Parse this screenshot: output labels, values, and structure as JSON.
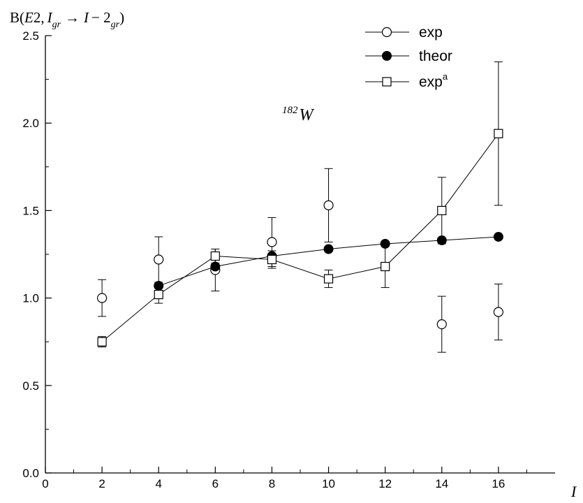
{
  "chart_data": {
    "type": "scatter",
    "title": "",
    "xlabel": "I",
    "ylabel": "B(E2, I_gr → I − 2_gr)",
    "ylabel_parts": {
      "pre": "B(",
      "E2": "E",
      "two": "2,",
      "I1": "I",
      "gr1": "gr",
      "arrow": "→",
      "I2": "I",
      "minus": "− 2",
      "gr2": "gr",
      "close": ")"
    },
    "annotation": {
      "mass": "182",
      "element": "W"
    },
    "xlim": [
      0,
      18
    ],
    "ylim": [
      0,
      2.5
    ],
    "x_ticks": [
      0,
      2,
      4,
      6,
      8,
      10,
      12,
      14,
      16
    ],
    "y_ticks": [
      0.0,
      0.5,
      1.0,
      1.5,
      2.0,
      2.5
    ],
    "x_tick_labels": [
      "0",
      "2",
      "4",
      "6",
      "8",
      "10",
      "12",
      "14",
      "16"
    ],
    "y_tick_labels": [
      "0.0",
      "0.5",
      "1.0",
      "1.5",
      "2.0",
      "2.5"
    ],
    "legend_position": "top-right",
    "series": [
      {
        "name": "exp",
        "marker": "open-circle",
        "line": false,
        "x": [
          2,
          4,
          6,
          8,
          10,
          14,
          16
        ],
        "y": [
          1.0,
          1.22,
          1.16,
          1.32,
          1.53,
          0.85,
          0.92
        ],
        "err": [
          0.105,
          0.13,
          0.12,
          0.14,
          0.21,
          0.16,
          0.16
        ]
      },
      {
        "name": "theor",
        "marker": "filled-circle",
        "line": true,
        "x": [
          4,
          6,
          8,
          10,
          12,
          14,
          16
        ],
        "y": [
          1.07,
          1.18,
          1.24,
          1.28,
          1.31,
          1.33,
          1.35
        ]
      },
      {
        "name": "exp",
        "name_sup": "a",
        "marker": "open-square",
        "line": true,
        "x": [
          2,
          4,
          6,
          8,
          10,
          12,
          14,
          16
        ],
        "y": [
          0.75,
          1.02,
          1.24,
          1.22,
          1.11,
          1.18,
          1.5,
          1.94
        ],
        "err": [
          0.03,
          0.05,
          0.04,
          0.05,
          0.05,
          0.12,
          0.19,
          0.41
        ]
      }
    ]
  }
}
